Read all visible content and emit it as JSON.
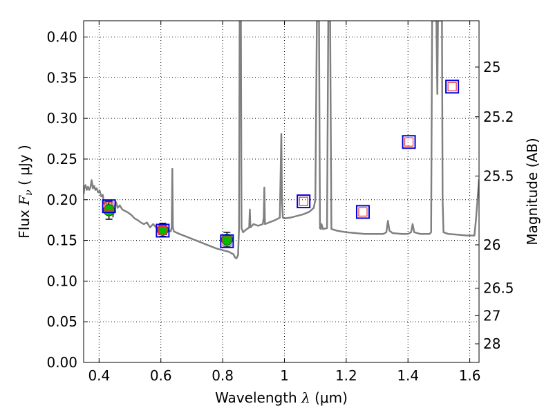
{
  "chart_data": {
    "type": "scatter",
    "xlabel": {
      "prefix": "Wavelength  ",
      "symbol": "λ",
      "units": " (μm)"
    },
    "ylabel": {
      "prefix": "Flux  ",
      "symbol": "F",
      "subscript": "ν",
      "units": "  ( μJy )"
    },
    "y2label": "Magnitude (AB)",
    "xlim": [
      0.35,
      1.63
    ],
    "ylim": [
      0.0,
      0.42
    ],
    "grid": true,
    "xticks": [
      {
        "value": 0.4,
        "label": "0.4"
      },
      {
        "value": 0.6,
        "label": "0.6"
      },
      {
        "value": 0.8,
        "label": "0.8"
      },
      {
        "value": 1.0,
        "label": "1"
      },
      {
        "value": 1.2,
        "label": "1.2"
      },
      {
        "value": 1.4,
        "label": "1.4"
      },
      {
        "value": 1.6,
        "label": "1.6"
      }
    ],
    "yticks": [
      {
        "value": 0.0,
        "label": "0.00"
      },
      {
        "value": 0.05,
        "label": "0.05"
      },
      {
        "value": 0.1,
        "label": "0.10"
      },
      {
        "value": 0.15,
        "label": "0.15"
      },
      {
        "value": 0.2,
        "label": "0.20"
      },
      {
        "value": 0.25,
        "label": "0.25"
      },
      {
        "value": 0.3,
        "label": "0.30"
      },
      {
        "value": 0.35,
        "label": "0.35"
      },
      {
        "value": 0.4,
        "label": "0.40"
      }
    ],
    "y2ticks": [
      {
        "value": 25,
        "label": "25"
      },
      {
        "value": 25.2,
        "label": "25.2"
      },
      {
        "value": 25.5,
        "label": "25.5"
      },
      {
        "value": 26,
        "label": "26"
      },
      {
        "value": 26.5,
        "label": "26.5"
      },
      {
        "value": 27,
        "label": "27"
      },
      {
        "value": 28,
        "label": "28"
      }
    ],
    "ab_zero_point": 23.9,
    "sed_model": {
      "color": "#808080",
      "points": [
        [
          0.35,
          0.207
        ],
        [
          0.353,
          0.216
        ],
        [
          0.356,
          0.218
        ],
        [
          0.36,
          0.212
        ],
        [
          0.364,
          0.216
        ],
        [
          0.368,
          0.212
        ],
        [
          0.372,
          0.215
        ],
        [
          0.376,
          0.224
        ],
        [
          0.38,
          0.214
        ],
        [
          0.384,
          0.217
        ],
        [
          0.388,
          0.212
        ],
        [
          0.392,
          0.214
        ],
        [
          0.397,
          0.209
        ],
        [
          0.402,
          0.211
        ],
        [
          0.407,
          0.204
        ],
        [
          0.412,
          0.206
        ],
        [
          0.416,
          0.195
        ],
        [
          0.42,
          0.199
        ],
        [
          0.425,
          0.193
        ],
        [
          0.43,
          0.195
        ],
        [
          0.435,
          0.188
        ],
        [
          0.44,
          0.196
        ],
        [
          0.445,
          0.179
        ],
        [
          0.45,
          0.192
        ],
        [
          0.455,
          0.197
        ],
        [
          0.46,
          0.19
        ],
        [
          0.467,
          0.193
        ],
        [
          0.475,
          0.188
        ],
        [
          0.485,
          0.186
        ],
        [
          0.495,
          0.184
        ],
        [
          0.505,
          0.181
        ],
        [
          0.515,
          0.177
        ],
        [
          0.525,
          0.175
        ],
        [
          0.535,
          0.172
        ],
        [
          0.545,
          0.17
        ],
        [
          0.555,
          0.172
        ],
        [
          0.565,
          0.166
        ],
        [
          0.575,
          0.17
        ],
        [
          0.585,
          0.166
        ],
        [
          0.595,
          0.164
        ],
        [
          0.605,
          0.165
        ],
        [
          0.615,
          0.163
        ],
        [
          0.625,
          0.162
        ],
        [
          0.632,
          0.161
        ],
        [
          0.635,
          0.166
        ],
        [
          0.637,
          0.238
        ],
        [
          0.639,
          0.166
        ],
        [
          0.642,
          0.161
        ],
        [
          0.66,
          0.158
        ],
        [
          0.68,
          0.155
        ],
        [
          0.7,
          0.152
        ],
        [
          0.72,
          0.149
        ],
        [
          0.74,
          0.146
        ],
        [
          0.76,
          0.143
        ],
        [
          0.78,
          0.14
        ],
        [
          0.8,
          0.138
        ],
        [
          0.82,
          0.136
        ],
        [
          0.835,
          0.133
        ],
        [
          0.84,
          0.129
        ],
        [
          0.845,
          0.128
        ],
        [
          0.85,
          0.132
        ],
        [
          0.853,
          0.165
        ],
        [
          0.855,
          0.42
        ],
        [
          0.859,
          0.42
        ],
        [
          0.861,
          0.165
        ],
        [
          0.866,
          0.16
        ],
        [
          0.875,
          0.163
        ],
        [
          0.886,
          0.166
        ],
        [
          0.888,
          0.188
        ],
        [
          0.89,
          0.166
        ],
        [
          0.9,
          0.17
        ],
        [
          0.915,
          0.168
        ],
        [
          0.93,
          0.17
        ],
        [
          0.933,
          0.178
        ],
        [
          0.935,
          0.215
        ],
        [
          0.937,
          0.17
        ],
        [
          0.95,
          0.172
        ],
        [
          0.97,
          0.175
        ],
        [
          0.985,
          0.178
        ],
        [
          0.988,
          0.238
        ],
        [
          0.99,
          0.281
        ],
        [
          0.992,
          0.2
        ],
        [
          0.995,
          0.178
        ],
        [
          1.0,
          0.177
        ],
        [
          1.02,
          0.178
        ],
        [
          1.04,
          0.18
        ],
        [
          1.06,
          0.182
        ],
        [
          1.08,
          0.185
        ],
        [
          1.095,
          0.19
        ],
        [
          1.1,
          0.2
        ],
        [
          1.105,
          0.42
        ],
        [
          1.112,
          0.42
        ],
        [
          1.115,
          0.165
        ],
        [
          1.118,
          0.164
        ],
        [
          1.12,
          0.17
        ],
        [
          1.125,
          0.164
        ],
        [
          1.138,
          0.165
        ],
        [
          1.142,
          0.42
        ],
        [
          1.148,
          0.42
        ],
        [
          1.152,
          0.164
        ],
        [
          1.17,
          0.162
        ],
        [
          1.2,
          0.16
        ],
        [
          1.23,
          0.159
        ],
        [
          1.26,
          0.158
        ],
        [
          1.29,
          0.158
        ],
        [
          1.32,
          0.158
        ],
        [
          1.33,
          0.16
        ],
        [
          1.335,
          0.174
        ],
        [
          1.34,
          0.162
        ],
        [
          1.35,
          0.159
        ],
        [
          1.38,
          0.158
        ],
        [
          1.4,
          0.158
        ],
        [
          1.41,
          0.16
        ],
        [
          1.415,
          0.17
        ],
        [
          1.42,
          0.16
        ],
        [
          1.44,
          0.158
        ],
        [
          1.47,
          0.158
        ],
        [
          1.475,
          0.16
        ],
        [
          1.478,
          0.42
        ],
        [
          1.492,
          0.42
        ],
        [
          1.495,
          0.33
        ],
        [
          1.497,
          0.42
        ],
        [
          1.51,
          0.42
        ],
        [
          1.512,
          0.2
        ],
        [
          1.515,
          0.16
        ],
        [
          1.53,
          0.158
        ],
        [
          1.56,
          0.157
        ],
        [
          1.59,
          0.156
        ],
        [
          1.615,
          0.156
        ],
        [
          1.62,
          0.175
        ],
        [
          1.625,
          0.2
        ],
        [
          1.63,
          0.225
        ]
      ]
    },
    "observed": {
      "marker_fill": "#00bb00",
      "marker_edge": "#006600",
      "points": [
        {
          "x": 0.432,
          "y": 0.187,
          "yerr": 0.011
        },
        {
          "x": 0.606,
          "y": 0.163,
          "yerr": 0.008
        },
        {
          "x": 0.814,
          "y": 0.151,
          "yerr": 0.009
        }
      ]
    },
    "model_bands": {
      "outer_color": "#0000dd",
      "inner_color": "#ee3333",
      "points": [
        {
          "x": 0.432,
          "y": 0.192
        },
        {
          "x": 0.606,
          "y": 0.162
        },
        {
          "x": 0.814,
          "y": 0.149
        },
        {
          "x": 1.062,
          "y": 0.198
        },
        {
          "x": 1.254,
          "y": 0.185
        },
        {
          "x": 1.403,
          "y": 0.271
        },
        {
          "x": 1.543,
          "y": 0.339
        }
      ]
    }
  }
}
